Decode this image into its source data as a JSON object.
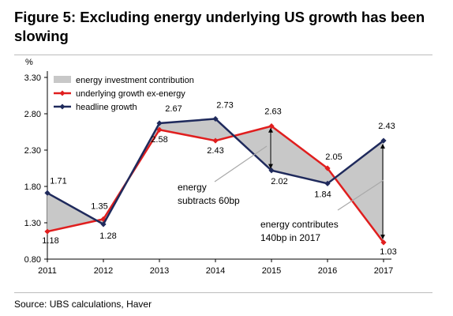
{
  "title": "Figure 5: Excluding energy underlying US growth has been slowing",
  "source": "Source:  UBS calculations, Haver",
  "chart_data": {
    "type": "line",
    "y_unit": "%",
    "x": [
      "2011",
      "2012",
      "2013",
      "2014",
      "2015",
      "2016",
      "2017"
    ],
    "y_ticks": [
      "0.80",
      "1.30",
      "1.80",
      "2.30",
      "2.80",
      "3.30"
    ],
    "ylim": [
      0.8,
      3.3
    ],
    "series": [
      {
        "name": "energy investment contribution",
        "kind": "area",
        "color": "#c8c8c8"
      },
      {
        "name": "underlying growth ex-energy",
        "color": "#e01e1e",
        "values": [
          1.18,
          1.35,
          2.58,
          2.43,
          2.63,
          2.05,
          1.03
        ],
        "labels": [
          "1.18",
          "1.35",
          "2.58",
          "2.43",
          "2.63",
          "2.05",
          "1.03"
        ]
      },
      {
        "name": "headline growth",
        "color": "#1f2a5c",
        "values": [
          1.71,
          1.28,
          2.67,
          2.73,
          2.02,
          1.84,
          2.43
        ],
        "labels": [
          "1.71",
          "1.28",
          "2.67",
          "2.73",
          "2.02",
          "1.84",
          "2.43"
        ]
      }
    ],
    "annotations": [
      {
        "id": "energy-subtracts",
        "lines": [
          "energy",
          "subtracts 60bp"
        ]
      },
      {
        "id": "energy-contributes",
        "lines": [
          "energy contributes",
          "140bp in 2017"
        ]
      }
    ],
    "legend_position": "top-left",
    "grid": false
  }
}
